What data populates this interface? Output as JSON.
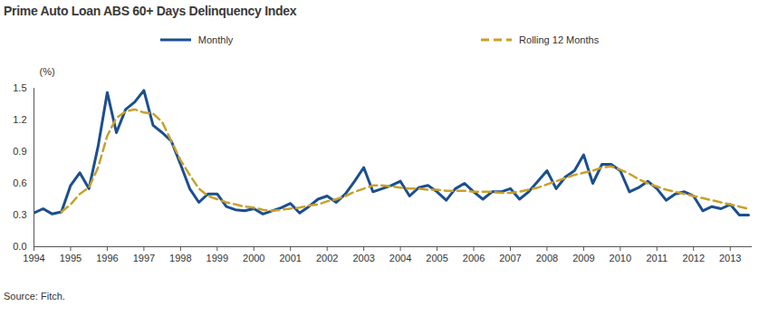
{
  "chart_data": {
    "type": "line",
    "title": "Prime Auto Loan ABS 60+ Days Delinquency Index",
    "caption": "Source: Fitch.",
    "ylabel": "(%)",
    "x": [
      1994,
      1994.25,
      1994.5,
      1994.75,
      1995,
      1995.25,
      1995.5,
      1995.75,
      1996,
      1996.25,
      1996.5,
      1996.75,
      1997,
      1997.25,
      1997.5,
      1997.75,
      1998,
      1998.25,
      1998.5,
      1998.75,
      1999,
      1999.25,
      1999.5,
      1999.75,
      2000,
      2000.25,
      2000.5,
      2000.75,
      2001,
      2001.25,
      2001.5,
      2001.75,
      2002,
      2002.25,
      2002.5,
      2002.75,
      2003,
      2003.25,
      2003.5,
      2003.75,
      2004,
      2004.25,
      2004.5,
      2004.75,
      2005,
      2005.25,
      2005.5,
      2005.75,
      2006,
      2006.25,
      2006.5,
      2006.75,
      2007,
      2007.25,
      2007.5,
      2007.75,
      2008,
      2008.25,
      2008.5,
      2008.75,
      2009,
      2009.25,
      2009.5,
      2009.75,
      2010,
      2010.25,
      2010.5,
      2010.75,
      2011,
      2011.25,
      2011.5,
      2011.75,
      2012,
      2012.25,
      2012.5,
      2012.75,
      2013,
      2013.25,
      2013.5
    ],
    "series": [
      {
        "name": "Monthly",
        "color": "#1b4f8f",
        "line_style": "solid",
        "values": [
          0.32,
          0.36,
          0.31,
          0.33,
          0.58,
          0.7,
          0.55,
          0.95,
          1.46,
          1.08,
          1.3,
          1.37,
          1.48,
          1.15,
          1.08,
          1.0,
          0.78,
          0.55,
          0.42,
          0.5,
          0.5,
          0.38,
          0.35,
          0.34,
          0.36,
          0.31,
          0.34,
          0.37,
          0.41,
          0.32,
          0.38,
          0.45,
          0.48,
          0.42,
          0.5,
          0.62,
          0.75,
          0.52,
          0.55,
          0.58,
          0.62,
          0.48,
          0.56,
          0.58,
          0.52,
          0.44,
          0.55,
          0.6,
          0.52,
          0.45,
          0.52,
          0.52,
          0.55,
          0.45,
          0.52,
          0.62,
          0.72,
          0.55,
          0.66,
          0.72,
          0.87,
          0.6,
          0.78,
          0.78,
          0.72,
          0.52,
          0.56,
          0.62,
          0.55,
          0.44,
          0.5,
          0.52,
          0.48,
          0.34,
          0.38,
          0.36,
          0.4,
          0.3,
          0.3
        ]
      },
      {
        "name": "Rolling 12 Months",
        "color": "#c9a02c",
        "line_style": "dashed",
        "values": [
          null,
          null,
          null,
          0.33,
          0.4,
          0.5,
          0.56,
          0.75,
          1.05,
          1.22,
          1.28,
          1.3,
          1.27,
          1.26,
          1.18,
          1.0,
          0.82,
          0.68,
          0.55,
          0.48,
          0.45,
          0.42,
          0.4,
          0.38,
          0.37,
          0.35,
          0.34,
          0.35,
          0.36,
          0.37,
          0.39,
          0.4,
          0.43,
          0.45,
          0.48,
          0.52,
          0.55,
          0.58,
          0.58,
          0.57,
          0.56,
          0.55,
          0.55,
          0.54,
          0.54,
          0.53,
          0.53,
          0.53,
          0.52,
          0.52,
          0.52,
          0.51,
          0.51,
          0.52,
          0.54,
          0.56,
          0.59,
          0.62,
          0.65,
          0.68,
          0.7,
          0.72,
          0.75,
          0.76,
          0.73,
          0.69,
          0.64,
          0.6,
          0.57,
          0.54,
          0.52,
          0.5,
          0.48,
          0.46,
          0.44,
          0.42,
          0.4,
          0.38,
          0.36
        ]
      }
    ],
    "xlim": [
      1994,
      2013.6
    ],
    "xticks": [
      1994,
      1995,
      1996,
      1997,
      1998,
      1999,
      2000,
      2001,
      2002,
      2003,
      2004,
      2005,
      2006,
      2007,
      2008,
      2009,
      2010,
      2011,
      2012,
      2013
    ],
    "ylim": [
      0,
      1.5
    ],
    "yticks": [
      {
        "value": 0,
        "label": "0.0"
      },
      0.3,
      0.6,
      0.9,
      1.2,
      1.5
    ],
    "grid": false,
    "legend": "top"
  }
}
